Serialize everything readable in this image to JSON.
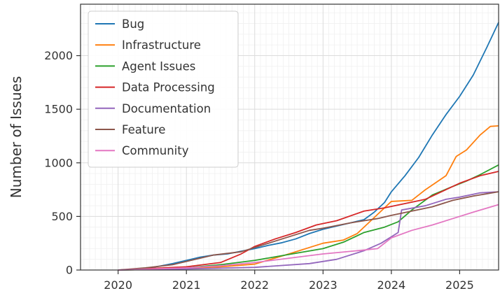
{
  "chart_data": {
    "type": "line",
    "title": "",
    "xlabel": "",
    "ylabel": "Number of Issues",
    "xlim": [
      2019.45,
      2025.57
    ],
    "ylim": [
      0,
      2480
    ],
    "x_ticks": [
      2020,
      2021,
      2022,
      2023,
      2024,
      2025
    ],
    "y_ticks": [
      0,
      500,
      1000,
      1500,
      2000
    ],
    "grid": true,
    "legend_position": "top-left",
    "series": [
      {
        "name": "Bug",
        "color": "#1f77b4",
        "points": [
          [
            2020.0,
            0
          ],
          [
            2020.2,
            5
          ],
          [
            2020.4,
            15
          ],
          [
            2020.6,
            35
          ],
          [
            2020.8,
            60
          ],
          [
            2021.0,
            90
          ],
          [
            2021.2,
            120
          ],
          [
            2021.4,
            140
          ],
          [
            2021.6,
            150
          ],
          [
            2021.8,
            175
          ],
          [
            2022.0,
            200
          ],
          [
            2022.2,
            230
          ],
          [
            2022.4,
            255
          ],
          [
            2022.6,
            290
          ],
          [
            2022.8,
            340
          ],
          [
            2023.0,
            380
          ],
          [
            2023.2,
            410
          ],
          [
            2023.4,
            440
          ],
          [
            2023.6,
            470
          ],
          [
            2023.75,
            540
          ],
          [
            2023.9,
            630
          ],
          [
            2024.0,
            730
          ],
          [
            2024.2,
            880
          ],
          [
            2024.4,
            1050
          ],
          [
            2024.6,
            1260
          ],
          [
            2024.8,
            1450
          ],
          [
            2025.0,
            1620
          ],
          [
            2025.2,
            1820
          ],
          [
            2025.4,
            2080
          ],
          [
            2025.57,
            2310
          ]
        ]
      },
      {
        "name": "Infrastructure",
        "color": "#ff7f0e",
        "points": [
          [
            2020.0,
            0
          ],
          [
            2020.5,
            5
          ],
          [
            2021.0,
            15
          ],
          [
            2021.5,
            30
          ],
          [
            2022.0,
            55
          ],
          [
            2022.5,
            150
          ],
          [
            2022.8,
            210
          ],
          [
            2023.0,
            250
          ],
          [
            2023.3,
            280
          ],
          [
            2023.5,
            340
          ],
          [
            2023.7,
            460
          ],
          [
            2023.9,
            580
          ],
          [
            2024.0,
            640
          ],
          [
            2024.3,
            650
          ],
          [
            2024.5,
            750
          ],
          [
            2024.8,
            880
          ],
          [
            2024.95,
            1060
          ],
          [
            2025.1,
            1120
          ],
          [
            2025.3,
            1260
          ],
          [
            2025.45,
            1340
          ],
          [
            2025.57,
            1345
          ]
        ]
      },
      {
        "name": "Agent Issues",
        "color": "#2ca02c",
        "points": [
          [
            2020.0,
            0
          ],
          [
            2020.5,
            5
          ],
          [
            2021.0,
            20
          ],
          [
            2021.5,
            50
          ],
          [
            2022.0,
            90
          ],
          [
            2022.5,
            145
          ],
          [
            2023.0,
            200
          ],
          [
            2023.3,
            260
          ],
          [
            2023.6,
            350
          ],
          [
            2023.9,
            400
          ],
          [
            2024.1,
            450
          ],
          [
            2024.3,
            560
          ],
          [
            2024.6,
            700
          ],
          [
            2024.9,
            780
          ],
          [
            2025.1,
            830
          ],
          [
            2025.3,
            890
          ],
          [
            2025.57,
            980
          ]
        ]
      },
      {
        "name": "Data Processing",
        "color": "#d62728",
        "points": [
          [
            2020.0,
            0
          ],
          [
            2020.5,
            15
          ],
          [
            2021.0,
            30
          ],
          [
            2021.5,
            70
          ],
          [
            2021.8,
            150
          ],
          [
            2022.0,
            220
          ],
          [
            2022.3,
            290
          ],
          [
            2022.6,
            350
          ],
          [
            2022.9,
            420
          ],
          [
            2023.2,
            460
          ],
          [
            2023.6,
            550
          ],
          [
            2023.9,
            580
          ],
          [
            2024.2,
            620
          ],
          [
            2024.5,
            660
          ],
          [
            2024.8,
            750
          ],
          [
            2025.0,
            810
          ],
          [
            2025.3,
            880
          ],
          [
            2025.57,
            920
          ]
        ]
      },
      {
        "name": "Documentation",
        "color": "#9467bd",
        "points": [
          [
            2020.0,
            0
          ],
          [
            2021.0,
            10
          ],
          [
            2022.0,
            25
          ],
          [
            2022.8,
            60
          ],
          [
            2023.2,
            100
          ],
          [
            2023.6,
            180
          ],
          [
            2023.85,
            250
          ],
          [
            2024.1,
            350
          ],
          [
            2024.15,
            560
          ],
          [
            2024.5,
            600
          ],
          [
            2024.8,
            660
          ],
          [
            2025.0,
            680
          ],
          [
            2025.3,
            720
          ],
          [
            2025.57,
            730
          ]
        ]
      },
      {
        "name": "Feature",
        "color": "#8c564b",
        "points": [
          [
            2020.0,
            0
          ],
          [
            2020.4,
            20
          ],
          [
            2020.8,
            50
          ],
          [
            2021.0,
            80
          ],
          [
            2021.4,
            140
          ],
          [
            2021.8,
            170
          ],
          [
            2022.0,
            210
          ],
          [
            2022.4,
            290
          ],
          [
            2022.8,
            370
          ],
          [
            2023.0,
            390
          ],
          [
            2023.4,
            440
          ],
          [
            2023.8,
            480
          ],
          [
            2024.0,
            510
          ],
          [
            2024.3,
            550
          ],
          [
            2024.6,
            590
          ],
          [
            2024.9,
            650
          ],
          [
            2025.2,
            690
          ],
          [
            2025.57,
            730
          ]
        ]
      },
      {
        "name": "Community",
        "color": "#e377c2",
        "points": [
          [
            2020.0,
            0
          ],
          [
            2021.0,
            20
          ],
          [
            2021.5,
            40
          ],
          [
            2022.0,
            70
          ],
          [
            2022.5,
            110
          ],
          [
            2023.0,
            150
          ],
          [
            2023.5,
            180
          ],
          [
            2023.8,
            200
          ],
          [
            2024.0,
            300
          ],
          [
            2024.3,
            370
          ],
          [
            2024.6,
            420
          ],
          [
            2024.9,
            480
          ],
          [
            2025.2,
            540
          ],
          [
            2025.57,
            610
          ]
        ]
      }
    ]
  }
}
